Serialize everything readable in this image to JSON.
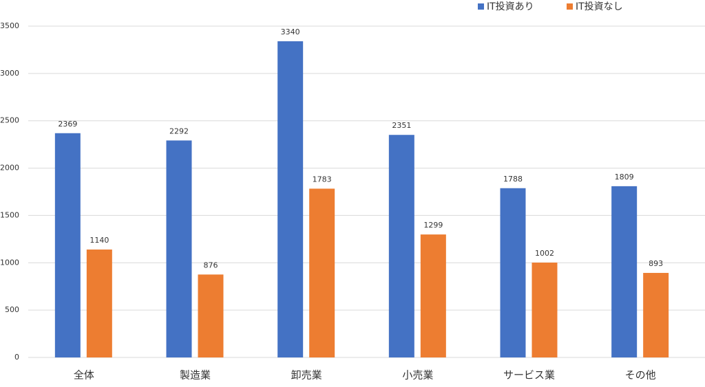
{
  "chart_data": {
    "type": "bar",
    "categories": [
      "全体",
      "製造業",
      "卸売業",
      "小売業",
      "サービス業",
      "その他"
    ],
    "series": [
      {
        "name": "IT投資あり",
        "color": "#4472c4",
        "values": [
          2369,
          2292,
          3340,
          2351,
          1788,
          1809
        ]
      },
      {
        "name": "IT投資なし",
        "color": "#ed7d31",
        "values": [
          1140,
          876,
          1783,
          1299,
          1002,
          893
        ]
      }
    ],
    "ylim": [
      0,
      3500
    ],
    "yticks": [
      0,
      500,
      1000,
      1500,
      2000,
      2500,
      3000,
      3500
    ],
    "grid": true,
    "legend": "top-right"
  }
}
